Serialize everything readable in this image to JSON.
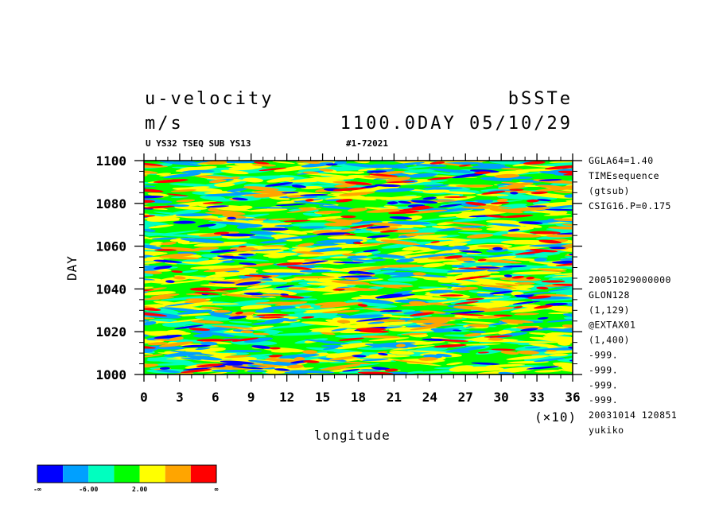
{
  "header": {
    "variable_name": "u-velocity",
    "experiment": "bSSTe",
    "units": "m/s",
    "time_label": "1100.0DAY 05/10/29",
    "subtitle_left": "U YS32 TSEQ SUB YS13",
    "subtitle_right": "#1-72021"
  },
  "side_info_top": [
    "GGLA64=1.40",
    "TIMEsequence",
    "(gtsub)",
    "CSIG16.P=0.175"
  ],
  "side_info_bottom": [
    "20051029000000",
    "GLON128",
    "(1,129)",
    "@EXTAX01",
    "(1,400)",
    "-999.",
    "-999.",
    "-999.",
    "-999.",
    "20031014 120851",
    "yukiko"
  ],
  "chart_data": {
    "type": "heatmap",
    "xlabel": "longitude",
    "x_multiplier_label": "(×10)",
    "ylabel": "DAY",
    "xlim": [
      0,
      36
    ],
    "ylim": [
      1000,
      1100
    ],
    "x_ticks": [
      "0",
      "3",
      "6",
      "9",
      "12",
      "15",
      "18",
      "21",
      "24",
      "27",
      "30",
      "33",
      "36"
    ],
    "y_ticks": [
      "1000",
      "1020",
      "1040",
      "1060",
      "1080",
      "1100"
    ],
    "colorbar": {
      "colors": [
        "#0000ff",
        "#00a0ff",
        "#00ffbf",
        "#00ff00",
        "#ffff00",
        "#ffa500",
        "#ff0000"
      ],
      "labels": [
        "-∞",
        "-6.00",
        "2.00",
        "∞"
      ]
    }
  }
}
